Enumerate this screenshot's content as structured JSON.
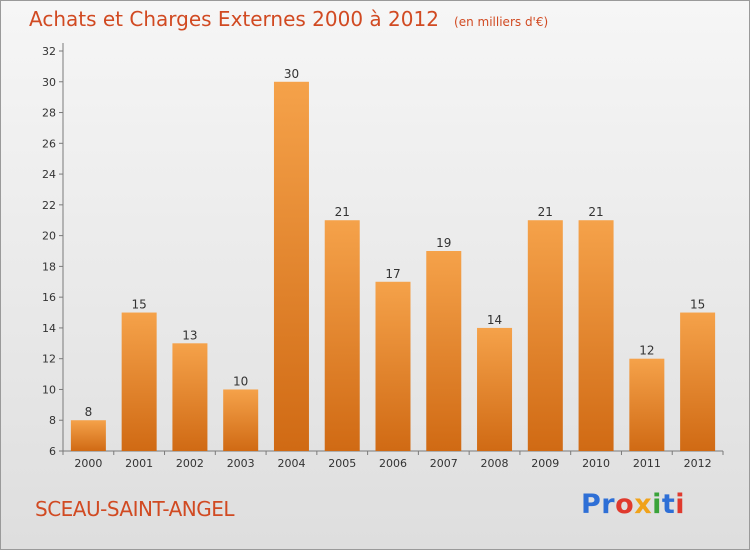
{
  "chart_data": {
    "type": "bar",
    "title": "Achats et Charges Externes 2000 à 2012",
    "subtitle": "(en milliers d'€)",
    "categories": [
      "2000",
      "2001",
      "2002",
      "2003",
      "2004",
      "2005",
      "2006",
      "2007",
      "2008",
      "2009",
      "2010",
      "2011",
      "2012"
    ],
    "values": [
      8,
      15,
      13,
      10,
      30,
      21,
      17,
      19,
      14,
      21,
      21,
      12,
      15
    ],
    "ylim": [
      6,
      32
    ],
    "yticks": [
      6,
      8,
      10,
      12,
      14,
      16,
      18,
      20,
      22,
      24,
      26,
      28,
      30,
      32
    ],
    "grid": false,
    "legend": "none",
    "bar_color_top": "#f5a24a",
    "bar_color_bottom": "#d06a14"
  },
  "footer": {
    "commune": "SCEAU-SAINT-ANGEL",
    "brand": "Proxiti",
    "brand_letters": [
      {
        "ch": "P",
        "color": "#2e6fd6"
      },
      {
        "ch": "r",
        "color": "#2e6fd6"
      },
      {
        "ch": "o",
        "color": "#e03a2e"
      },
      {
        "ch": "x",
        "color": "#f0a21a"
      },
      {
        "ch": "i",
        "color": "#3aa33a"
      },
      {
        "ch": "t",
        "color": "#2e6fd6"
      },
      {
        "ch": "i",
        "color": "#e03a2e"
      }
    ]
  }
}
